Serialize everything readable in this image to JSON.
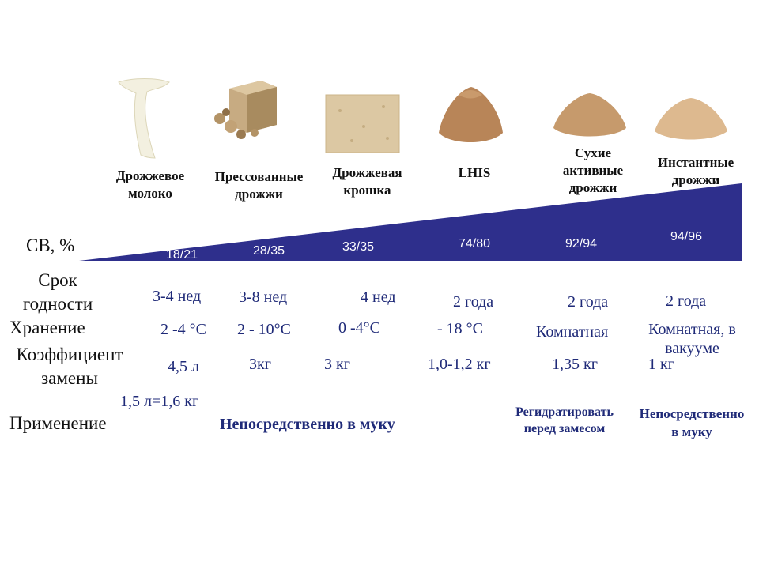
{
  "products": [
    {
      "name": "Дрожжевое\nмолоко",
      "icon": "yeast-milk-icon"
    },
    {
      "name": "Прессованные\nдрожжи",
      "icon": "pressed-yeast-icon"
    },
    {
      "name": "Дрожжевая\nкрошка",
      "icon": "yeast-crumb-icon"
    },
    {
      "name": "LHIS",
      "icon": "lhis-pile-icon"
    },
    {
      "name": "Сухие\nактивные\nдрожжи",
      "icon": "dry-active-yeast-pile-icon"
    },
    {
      "name": "Инстантные\nдрожжи",
      "icon": "instant-yeast-pile-icon"
    }
  ],
  "row_labels": {
    "cv": "СВ, %",
    "shelf_life": "Срок\nгодности",
    "storage": "Хранение",
    "coefficient": "Коэффициент\nзамены",
    "application": "Применение"
  },
  "cv_values": [
    "18/21",
    "28/35",
    "33/35",
    "74/80",
    "92/94",
    "94/96"
  ],
  "shelf_life": [
    "3-4 нед",
    "3-8 нед",
    "4 нед",
    "2 года",
    "2 года",
    "2 года"
  ],
  "storage": [
    "2 -4 °С",
    "2 - 10°С",
    "0 -4°С",
    "- 18 °С",
    "Комнатная",
    "Комнатная, в\nвакууме"
  ],
  "coefficient": [
    "4,5 л",
    "3кг",
    "3 кг",
    "1,0-1,2 кг",
    "1,35 кг",
    "1 кг"
  ],
  "coefficient_extra": "1,5 л=1,6 кг",
  "application": {
    "direct_1": "Непосредственно в муку",
    "rehydrate": "Регидратировать\nперед замесом",
    "direct_2": "Непосредственно\nв муку"
  },
  "colors": {
    "wedge": "#2e2f8c",
    "value_text": "#1f2a78"
  }
}
